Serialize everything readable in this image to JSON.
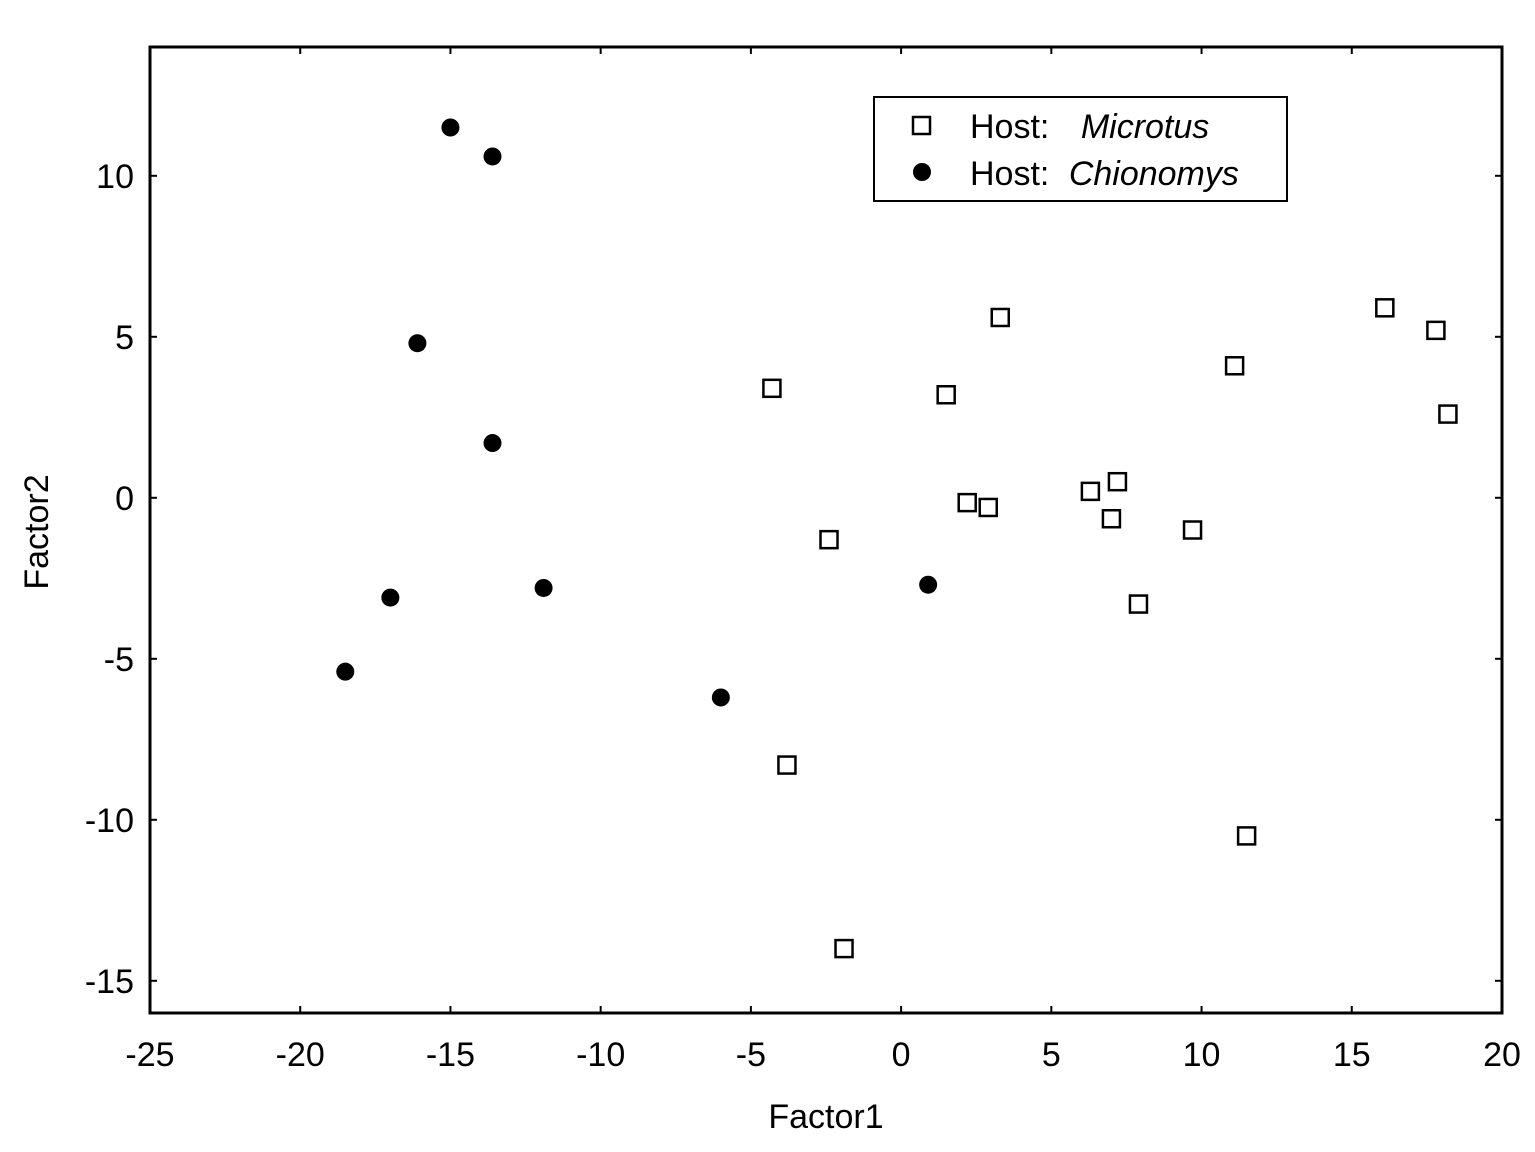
{
  "chart_data": {
    "type": "scatter",
    "xlabel": "Factor1",
    "ylabel": "Factor2",
    "xlim": [
      -25,
      20
    ],
    "ylim": [
      -16,
      14
    ],
    "xticks": [
      -25,
      -20,
      -15,
      -10,
      -5,
      0,
      5,
      10,
      15,
      20
    ],
    "yticks": [
      -15,
      -10,
      -5,
      0,
      5,
      10
    ],
    "grid": false,
    "legend_position": "top-center",
    "series": [
      {
        "name": "Host: Microtus",
        "legend_prefix": "Host:",
        "legend_genus": "Microtus",
        "marker": "open-square",
        "color": "#000000",
        "points": [
          [
            -4.3,
            3.4
          ],
          [
            -2.4,
            -1.3
          ],
          [
            -3.8,
            -8.3
          ],
          [
            -1.9,
            -14.0
          ],
          [
            1.5,
            3.2
          ],
          [
            3.3,
            5.6
          ],
          [
            2.2,
            -0.15
          ],
          [
            2.9,
            -0.3
          ],
          [
            6.3,
            0.2
          ],
          [
            7.2,
            0.5
          ],
          [
            7.0,
            -0.65
          ],
          [
            7.9,
            -3.3
          ],
          [
            9.7,
            -1.0
          ],
          [
            11.1,
            4.1
          ],
          [
            11.5,
            -10.5
          ],
          [
            16.1,
            5.9
          ],
          [
            17.8,
            5.2
          ],
          [
            18.2,
            2.6
          ]
        ]
      },
      {
        "name": "Host: Chionomys",
        "legend_prefix": "Host:",
        "legend_genus": "Chionomys",
        "marker": "filled-circle",
        "color": "#000000",
        "points": [
          [
            -15.0,
            11.5
          ],
          [
            -13.6,
            10.6
          ],
          [
            -16.1,
            4.8
          ],
          [
            -13.6,
            1.7
          ],
          [
            -17.0,
            -3.1
          ],
          [
            -18.5,
            -5.4
          ],
          [
            -11.9,
            -2.8
          ],
          [
            -6.0,
            -6.2
          ],
          [
            0.9,
            -2.7
          ]
        ]
      }
    ]
  }
}
